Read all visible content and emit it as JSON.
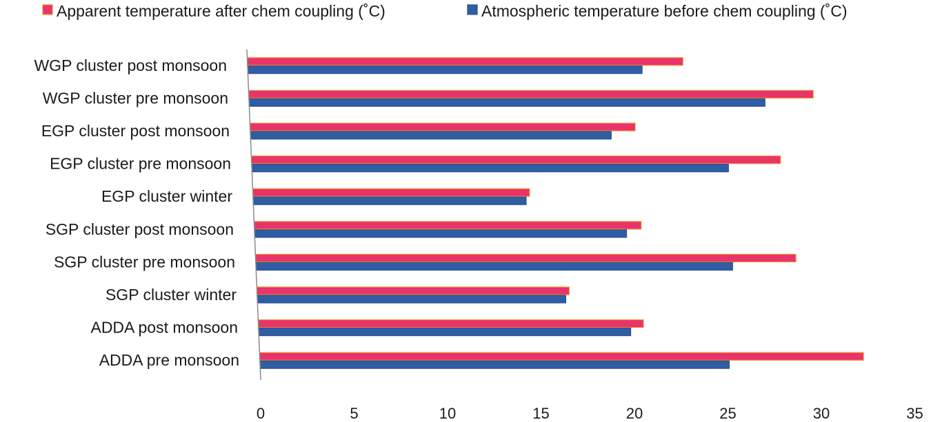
{
  "chart_data": {
    "type": "bar",
    "orientation": "horizontal",
    "categories": [
      "WGP cluster post monsoon",
      "WGP cluster pre monsoon",
      "EGP cluster post monsoon",
      "EGP cluster pre monsoon",
      "EGP cluster winter",
      "SGP cluster post monsoon",
      "SGP cluster pre monsoon",
      "SGP cluster winter",
      "ADDA post monsoon",
      "ADDA pre monsoon"
    ],
    "series": [
      {
        "name": "Apparent temperature after chem coupling (˚C)",
        "color": "#e8336b",
        "edge": "#f08a24",
        "values": [
          23.3,
          30.2,
          20.6,
          28.3,
          14.8,
          20.7,
          28.9,
          16.7,
          20.6,
          32.3
        ]
      },
      {
        "name": "Atmospheric temperature before chem coupling (˚C)",
        "color": "#2f5ea5",
        "edge": "#2a4f8a",
        "values": [
          21.1,
          27.6,
          19.3,
          25.5,
          14.6,
          19.9,
          25.5,
          16.5,
          19.9,
          25.1
        ]
      }
    ],
    "xlim": [
      0,
      35
    ],
    "xticks": [
      "0",
      "5",
      "10",
      "15",
      "20",
      "25",
      "30",
      "35"
    ],
    "xlabel": "",
    "ylabel": "",
    "title": "",
    "grid": false,
    "legend_position": "top"
  }
}
